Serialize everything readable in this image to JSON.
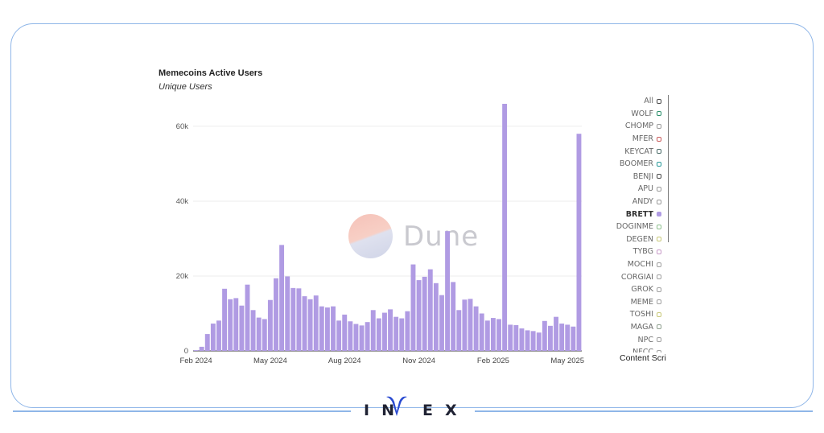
{
  "chart_data": {
    "type": "bar",
    "title": "Memecoins Active Users",
    "subtitle": "Unique Users",
    "ylim": [
      0,
      66000
    ],
    "yticks": [
      0,
      20000,
      40000,
      60000
    ],
    "ytick_labels": [
      "0",
      "20k",
      "40k",
      "60k"
    ],
    "xtick_labels": [
      "Feb 2024",
      "May 2024",
      "Aug 2024",
      "Nov 2024",
      "Feb 2025",
      "May 2025"
    ],
    "xtick_positions": [
      0,
      13,
      26,
      39,
      52,
      65
    ],
    "bar_color": "#b09be3",
    "series": [
      {
        "name": "BRETT",
        "values": [
          200,
          1100,
          4500,
          7300,
          8100,
          16600,
          13800,
          14100,
          12100,
          17700,
          10900,
          8900,
          8500,
          13600,
          19400,
          28300,
          19900,
          16800,
          16700,
          14600,
          13800,
          14800,
          11900,
          11600,
          11900,
          8100,
          9700,
          7900,
          7200,
          6800,
          7700,
          10900,
          8700,
          10200,
          11100,
          9100,
          8700,
          10600,
          23100,
          18900,
          19800,
          21800,
          18100,
          14900,
          32000,
          18400,
          10900,
          13700,
          13900,
          11900,
          10000,
          8100,
          8800,
          8500,
          66000,
          7000,
          6900,
          6000,
          5500,
          5300,
          4900,
          8000,
          6700,
          9100,
          7300,
          7000,
          6500,
          58000
        ]
      }
    ]
  },
  "legend": {
    "items": [
      {
        "label": "All",
        "color": "#4a4a4a"
      },
      {
        "label": "WOLF",
        "color": "#2a8f6a"
      },
      {
        "label": "CHOMP",
        "color": "#9a9a9a"
      },
      {
        "label": "MFER",
        "color": "#c85a5a"
      },
      {
        "label": "KEYCAT",
        "color": "#4d6d6a"
      },
      {
        "label": "BOOMER",
        "color": "#2a9a9a"
      },
      {
        "label": "BENJI",
        "color": "#4a4a4a"
      },
      {
        "label": "APU",
        "color": "#9a9a9a"
      },
      {
        "label": "ANDY",
        "color": "#9a9a9a"
      },
      {
        "label": "BRETT",
        "color": "#b09be3"
      },
      {
        "label": "DOGINME",
        "color": "#8fc08f"
      },
      {
        "label": "DEGEN",
        "color": "#c8c878"
      },
      {
        "label": "TYBG",
        "color": "#c89ac8"
      },
      {
        "label": "MOCHI",
        "color": "#a0a0a0"
      },
      {
        "label": "CORGIAI",
        "color": "#a0a0a0"
      },
      {
        "label": "GROK",
        "color": "#a0a0a0"
      },
      {
        "label": "MEME",
        "color": "#a0a0a0"
      },
      {
        "label": "TOSHI",
        "color": "#c8c878"
      },
      {
        "label": "MAGA",
        "color": "#8fa08f"
      },
      {
        "label": "NPC",
        "color": "#a0a0a0"
      },
      {
        "label": "NFCC",
        "color": "#a0a0a0"
      }
    ],
    "active": "BRETT"
  },
  "content_tab": "Content Scri",
  "watermark": "Dune",
  "brand": {
    "text": "INVEX",
    "left_text": "IN",
    "right_text": "EX",
    "color": "#1f2233",
    "accent": "#2a4bd1"
  }
}
